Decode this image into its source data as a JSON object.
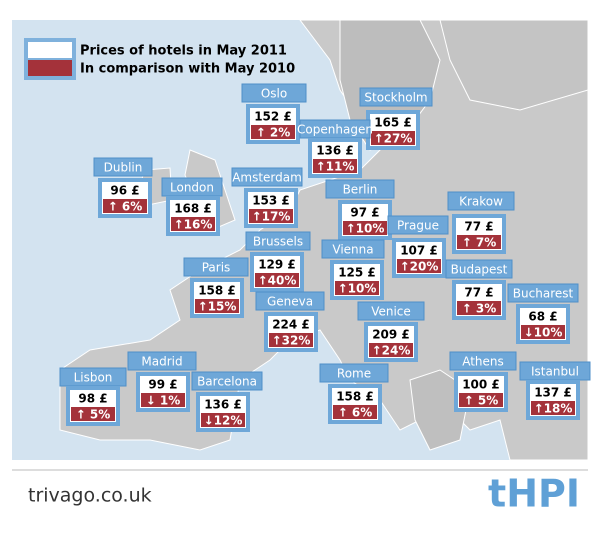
{
  "legend": {
    "price": "Prices of hotels in May 2011",
    "change": "In comparison with May 2010"
  },
  "cities": [
    {
      "name": "Oslo",
      "price": "152 £",
      "change": "↑ 2%"
    },
    {
      "name": "Stockholm",
      "price": "165 £",
      "change": "↑27%"
    },
    {
      "name": "Copenhagen",
      "price": "136 £",
      "change": "↑11%"
    },
    {
      "name": "Dublin",
      "price": "96 £",
      "change": "↑ 6%"
    },
    {
      "name": "London",
      "price": "168 £",
      "change": "↑16%"
    },
    {
      "name": "Amsterdam",
      "price": "153 £",
      "change": "↑17%"
    },
    {
      "name": "Berlin",
      "price": "97 £",
      "change": "↑10%"
    },
    {
      "name": "Krakow",
      "price": "77 £",
      "change": "↑ 7%"
    },
    {
      "name": "Prague",
      "price": "107 £",
      "change": "↑20%"
    },
    {
      "name": "Brussels",
      "price": "129 £",
      "change": "↑40%"
    },
    {
      "name": "Vienna",
      "price": "125 £",
      "change": "↑10%"
    },
    {
      "name": "Paris",
      "price": "158 £",
      "change": "↑15%"
    },
    {
      "name": "Budapest",
      "price": "77 £",
      "change": "↑ 3%"
    },
    {
      "name": "Geneva",
      "price": "224 £",
      "change": "↑32%"
    },
    {
      "name": "Bucharest",
      "price": "68 £",
      "change": "↓10%"
    },
    {
      "name": "Venice",
      "price": "209 £",
      "change": "↑24%"
    },
    {
      "name": "Madrid",
      "price": "99 £",
      "change": "↓ 1%"
    },
    {
      "name": "Lisbon",
      "price": "98 £",
      "change": "↑ 5%"
    },
    {
      "name": "Barcelona",
      "price": "136 £",
      "change": "↓12%"
    },
    {
      "name": "Rome",
      "price": "158 £",
      "change": "↑ 6%"
    },
    {
      "name": "Athens",
      "price": "100 £",
      "change": "↑ 5%"
    },
    {
      "name": "Istanbul",
      "price": "137 £",
      "change": "↑18%"
    }
  ],
  "footer": {
    "source": "trivago.co.uk",
    "brand": "tHPI"
  }
}
